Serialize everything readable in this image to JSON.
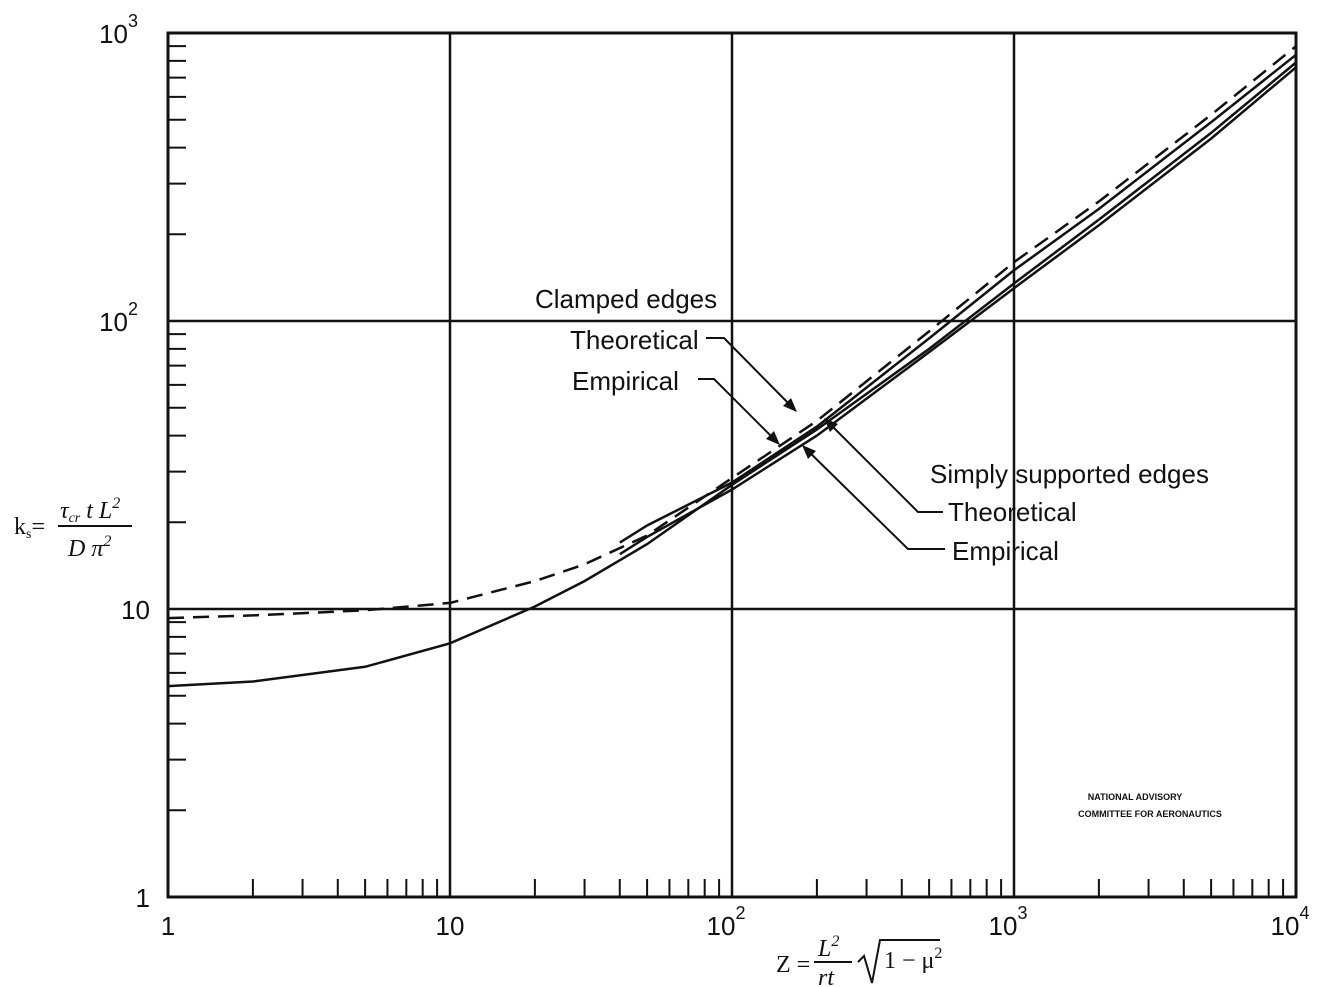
{
  "chart_data": {
    "type": "line",
    "x_scale": "log",
    "y_scale": "log",
    "xlim": [
      1,
      10000
    ],
    "ylim": [
      1,
      1000
    ],
    "grid": true,
    "x_ticks": [
      {
        "value": 1,
        "base": "1",
        "exp": ""
      },
      {
        "value": 10,
        "base": "10",
        "exp": ""
      },
      {
        "value": 100,
        "base": "10",
        "exp": "2"
      },
      {
        "value": 1000,
        "base": "10",
        "exp": "3"
      },
      {
        "value": 10000,
        "base": "10",
        "exp": "4"
      }
    ],
    "y_ticks": [
      {
        "value": 1,
        "base": "1",
        "exp": ""
      },
      {
        "value": 10,
        "base": "10",
        "exp": ""
      },
      {
        "value": 100,
        "base": "10",
        "exp": "2"
      },
      {
        "value": 1000,
        "base": "10",
        "exp": "3"
      }
    ],
    "xlabel": "Z = L² / rt · √(1 − μ²)",
    "ylabel": "ks = τcr t L² / D π²",
    "series": [
      {
        "name": "Clamped edges Theoretical",
        "style": "dashed",
        "x": [
          1,
          2,
          5,
          10,
          20,
          30,
          50,
          100,
          200,
          500,
          1000,
          2000,
          5000,
          10000
        ],
        "y": [
          9.3,
          9.5,
          9.9,
          10.5,
          12.5,
          14.3,
          18.0,
          28.5,
          45,
          92,
          160,
          260,
          520,
          900
        ]
      },
      {
        "name": "Clamped edges Empirical",
        "style": "solid",
        "x": [
          40,
          50,
          100,
          200,
          500,
          1000,
          2000,
          5000,
          10000
        ],
        "y": [
          17.0,
          19.5,
          27.5,
          43,
          87,
          150,
          245,
          490,
          840
        ]
      },
      {
        "name": "Simply supported edges Theoretical",
        "style": "solid",
        "x": [
          1,
          2,
          5,
          10,
          20,
          30,
          50,
          100,
          200,
          500,
          1000,
          2000,
          5000,
          10000
        ],
        "y": [
          5.4,
          5.6,
          6.3,
          7.6,
          10.2,
          12.5,
          16.8,
          27,
          42,
          80,
          135,
          225,
          450,
          790
        ]
      },
      {
        "name": "Simply supported edges Empirical",
        "style": "solid",
        "x": [
          40,
          50,
          100,
          200,
          500,
          1000,
          2000,
          5000,
          10000
        ],
        "y": [
          15.5,
          17.8,
          26,
          40,
          78,
          130,
          215,
          430,
          760
        ]
      }
    ],
    "annotations": {
      "clamped_heading": "Clamped edges",
      "clamped_theoretical": "Theoretical",
      "clamped_empirical": "Empirical",
      "simply_heading": "Simply supported edges",
      "simply_theoretical": "Theoretical",
      "simply_empirical": "Empirical"
    },
    "credit": [
      "NATIONAL ADVISORY",
      "COMMITTEE FOR AERONAUTICS"
    ],
    "colors": {
      "ink": "#111111",
      "background": "#ffffff"
    }
  }
}
